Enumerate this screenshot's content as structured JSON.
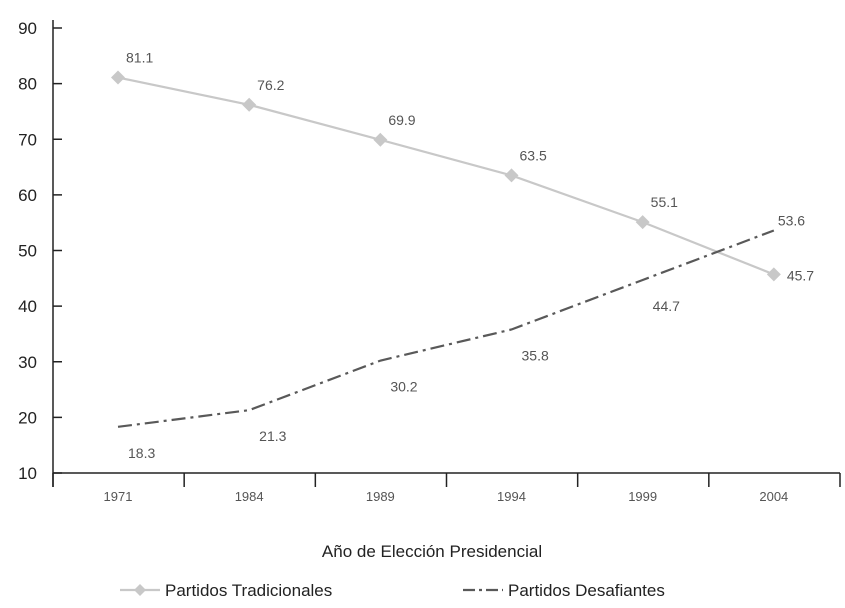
{
  "chart_data": {
    "type": "line",
    "categories": [
      "1971",
      "1984",
      "1989",
      "1994",
      "1999",
      "2004"
    ],
    "xlabel": "Año de Elección Presidencial",
    "ylabel": "",
    "title": "",
    "ylim": [
      10,
      90
    ],
    "yticks": [
      10,
      20,
      30,
      40,
      50,
      60,
      70,
      80,
      90
    ],
    "grid": false,
    "legend_position": "bottom",
    "series": [
      {
        "name": "Partidos Tradicionales",
        "values": [
          81.1,
          76.2,
          69.9,
          63.5,
          55.1,
          45.7
        ],
        "labels": [
          "81.1",
          "76.2",
          "69.9",
          "63.5",
          "55.1",
          "45.7"
        ],
        "color": "#c8c8c8",
        "marker": "diamond",
        "line_style": "solid"
      },
      {
        "name": "Partidos Desafiantes",
        "values": [
          18.3,
          21.3,
          30.2,
          35.8,
          44.7,
          53.6
        ],
        "labels": [
          "18.3",
          "21.3",
          "30.2",
          "35.8",
          "44.7",
          "53.6"
        ],
        "color": "#595959",
        "marker": "none",
        "line_style": "dash-dot"
      }
    ]
  }
}
